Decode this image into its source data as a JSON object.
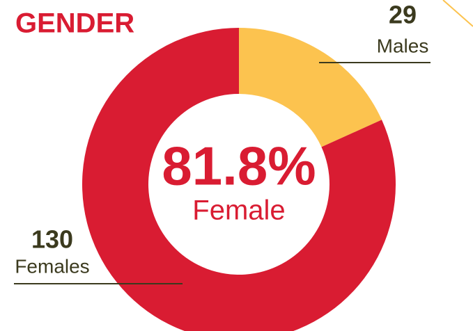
{
  "chart_data": {
    "type": "donut",
    "title": "GENDER",
    "categories": [
      "Males",
      "Females"
    ],
    "values": [
      29,
      130
    ],
    "colors": [
      "#fcc34f",
      "#d91c32"
    ],
    "center_label": "81.8%",
    "center_text": "Female"
  }
}
